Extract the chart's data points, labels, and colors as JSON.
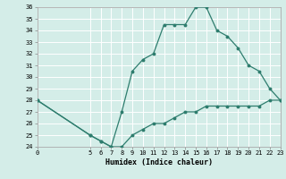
{
  "title": "",
  "xlabel": "Humidex (Indice chaleur)",
  "ylabel": "",
  "line_color": "#2e7d6e",
  "bg_color": "#d4ede8",
  "grid_color": "#ffffff",
  "x_upper": [
    0,
    5,
    6,
    7,
    8,
    9,
    10,
    11,
    12,
    13,
    14,
    15,
    16,
    17,
    18,
    19,
    20,
    21,
    22,
    23
  ],
  "y_upper": [
    28,
    25,
    24.5,
    24,
    27,
    30.5,
    31.5,
    32,
    34.5,
    34.5,
    34.5,
    36,
    36,
    34,
    33.5,
    32.5,
    31,
    30.5,
    29,
    28
  ],
  "x_lower": [
    0,
    5,
    6,
    7,
    8,
    9,
    10,
    11,
    12,
    13,
    14,
    15,
    16,
    17,
    18,
    19,
    20,
    21,
    22,
    23
  ],
  "y_lower": [
    28,
    25,
    24.5,
    24,
    24,
    25,
    25.5,
    26,
    26,
    26.5,
    27,
    27,
    27.5,
    27.5,
    27.5,
    27.5,
    27.5,
    27.5,
    28,
    28
  ],
  "xlim": [
    0,
    23
  ],
  "ylim": [
    24,
    36
  ],
  "xticks": [
    0,
    5,
    6,
    7,
    8,
    9,
    10,
    11,
    12,
    13,
    14,
    15,
    16,
    17,
    18,
    19,
    20,
    21,
    22,
    23
  ],
  "yticks": [
    24,
    25,
    26,
    27,
    28,
    29,
    30,
    31,
    32,
    33,
    34,
    35,
    36
  ],
  "xlabel_fontsize": 6.0,
  "tick_fontsize": 5.0
}
